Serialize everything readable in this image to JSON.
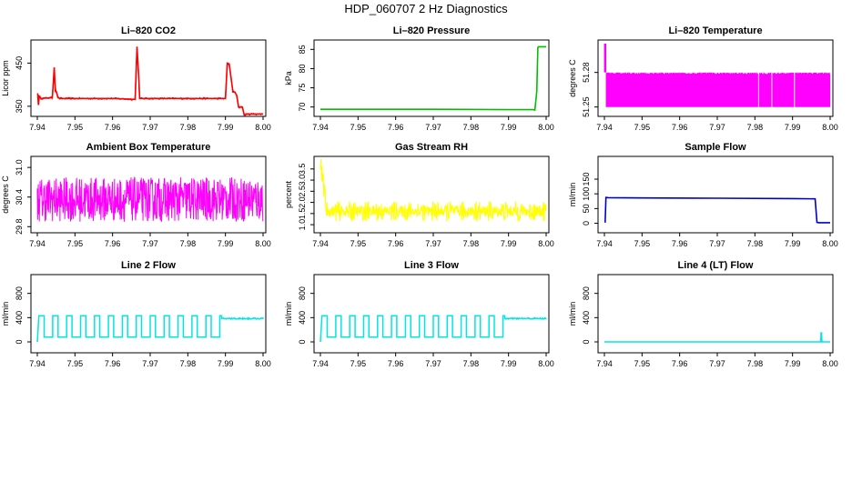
{
  "title": "HDP_060707  2 Hz Diagnostics",
  "chart_data": [
    {
      "type": "line",
      "title": "Li–820 CO2",
      "ylabel": "Licor ppm",
      "xlim": [
        7.94,
        8.0
      ],
      "ylim": [
        335,
        495
      ],
      "xticks": [
        "7.94",
        "7.95",
        "7.96",
        "7.97",
        "7.98",
        "7.99",
        "8.00"
      ],
      "yticks": [
        "350",
        "450"
      ],
      "color": "#ff0000",
      "series": [
        {
          "x": [
            7.9401,
            7.9403,
            7.9405,
            7.941,
            7.944,
            7.9445,
            7.9448,
            7.945,
            7.9455,
            7.946,
            7.9465,
            7.95,
            7.96,
            7.966,
            7.9665,
            7.967,
            7.9672,
            7.968,
            7.99,
            7.9905,
            7.991,
            7.992,
            7.9925,
            7.993,
            7.9935,
            7.9945,
            7.995,
            7.996,
            8.0
          ],
          "y": [
            380,
            353,
            373,
            368,
            370,
            440,
            385,
            385,
            370,
            368,
            368,
            368,
            368,
            366,
            488,
            410,
            368,
            368,
            368,
            450,
            448,
            383,
            383,
            375,
            348,
            348,
            330,
            332,
            332
          ]
        }
      ]
    },
    {
      "type": "line",
      "title": "Li–820 Pressure",
      "ylabel": "kPa",
      "xlim": [
        7.94,
        8.0
      ],
      "ylim": [
        68.5,
        86.5
      ],
      "xticks": [
        "7.94",
        "7.95",
        "7.96",
        "7.97",
        "7.98",
        "7.99",
        "8.00"
      ],
      "yticks": [
        "70",
        "75",
        "80",
        "85"
      ],
      "color": "#00c000",
      "series": [
        {
          "x": [
            7.94,
            7.95,
            7.97,
            7.99,
            7.9965,
            7.997,
            7.9975,
            7.9978,
            7.998,
            8.0
          ],
          "y": [
            69.4,
            69.4,
            69.4,
            69.3,
            69.3,
            69.2,
            74.0,
            85.5,
            85.7,
            85.7
          ]
        }
      ]
    },
    {
      "type": "area",
      "title": "Li–820 Temperature",
      "ylabel": "degrees C",
      "xlim": [
        7.94,
        8.0
      ],
      "ylim": [
        51.245,
        51.305
      ],
      "xticks": [
        "7.94",
        "7.95",
        "7.96",
        "7.97",
        "7.98",
        "7.99",
        "8.00"
      ],
      "yticks": [
        "51.25",
        "51.28"
      ],
      "color": "#ff00ff",
      "band": {
        "x_start": 7.9405,
        "x_end": 8.0,
        "y_low": 51.25,
        "y_high": 51.28
      },
      "spike": {
        "x": 7.9402,
        "y_low": 51.28,
        "y_high": 51.305
      },
      "gaps_x": [
        7.981,
        7.9845,
        7.9905
      ]
    },
    {
      "type": "line",
      "title": "Ambient Box Temperature",
      "ylabel": "degrees C",
      "xlim": [
        7.94,
        8.0
      ],
      "ylim": [
        29.75,
        31.15
      ],
      "xticks": [
        "7.94",
        "7.95",
        "7.96",
        "7.97",
        "7.98",
        "7.99",
        "8.00"
      ],
      "yticks": [
        "29.8",
        "30.4",
        "31.0"
      ],
      "color": "#ff00ff",
      "noise": {
        "center": 30.35,
        "amplitude": 0.45
      }
    },
    {
      "type": "line",
      "title": "Gas Stream RH",
      "ylabel": "percent",
      "xlim": [
        7.94,
        8.0
      ],
      "ylim": [
        0.8,
        3.9
      ],
      "xticks": [
        "7.94",
        "7.95",
        "7.96",
        "7.97",
        "7.98",
        "7.99",
        "8.00"
      ],
      "yticks": [
        "1.0",
        "1.5",
        "2.0",
        "2.5",
        "3.0",
        "3.5"
      ],
      "color": "#ffff00",
      "noise": {
        "center": 1.6,
        "amplitude": 0.45,
        "start_peak": 3.8
      }
    },
    {
      "type": "line",
      "title": "Sample Flow",
      "ylabel": "ml/min",
      "xlim": [
        7.94,
        8.0
      ],
      "ylim": [
        -20,
        215
      ],
      "xticks": [
        "7.94",
        "7.95",
        "7.96",
        "7.97",
        "7.98",
        "7.99",
        "8.00"
      ],
      "yticks": [
        "0",
        "50",
        "100",
        "150"
      ],
      "color": "#0000cc",
      "series": [
        {
          "x": [
            7.9402,
            7.9404,
            7.941,
            7.95,
            7.97,
            7.99,
            7.996,
            7.9965,
            7.997,
            8.0
          ],
          "y": [
            2,
            88,
            87,
            86,
            85,
            84,
            83,
            3,
            2,
            2
          ]
        }
      ]
    },
    {
      "type": "line",
      "title": "Line 2 Flow",
      "ylabel": "ml/min",
      "xlim": [
        7.94,
        8.0
      ],
      "ylim": [
        -120,
        1050
      ],
      "xticks": [
        "7.94",
        "7.95",
        "7.96",
        "7.97",
        "7.98",
        "7.99",
        "8.00"
      ],
      "yticks": [
        "0",
        "400",
        "800"
      ],
      "color": "#00e5e5",
      "square": {
        "x_start": 7.94,
        "x_end": 7.989,
        "period": 0.0037,
        "high": 430,
        "low": 80,
        "tail": 385
      }
    },
    {
      "type": "line",
      "title": "Line 3 Flow",
      "ylabel": "ml/min",
      "xlim": [
        7.94,
        8.0
      ],
      "ylim": [
        -120,
        1050
      ],
      "xticks": [
        "7.94",
        "7.95",
        "7.96",
        "7.97",
        "7.98",
        "7.99",
        "8.00"
      ],
      "yticks": [
        "0",
        "400",
        "800"
      ],
      "color": "#00e5e5",
      "square": {
        "x_start": 7.94,
        "x_end": 7.989,
        "period": 0.0037,
        "high": 430,
        "low": 80,
        "tail": 385
      }
    },
    {
      "type": "line",
      "title": "Line 4 (LT) Flow",
      "ylabel": "ml/min",
      "xlim": [
        7.94,
        8.0
      ],
      "ylim": [
        -120,
        1050
      ],
      "xticks": [
        "7.94",
        "7.95",
        "7.96",
        "7.97",
        "7.98",
        "7.99",
        "8.00"
      ],
      "yticks": [
        "0",
        "400",
        "800"
      ],
      "color": "#00e5e5",
      "series": [
        {
          "x": [
            7.94,
            7.9975,
            7.9976,
            7.9977,
            7.9978,
            8.0
          ],
          "y": [
            0,
            0,
            150,
            150,
            0,
            0
          ]
        }
      ]
    }
  ]
}
